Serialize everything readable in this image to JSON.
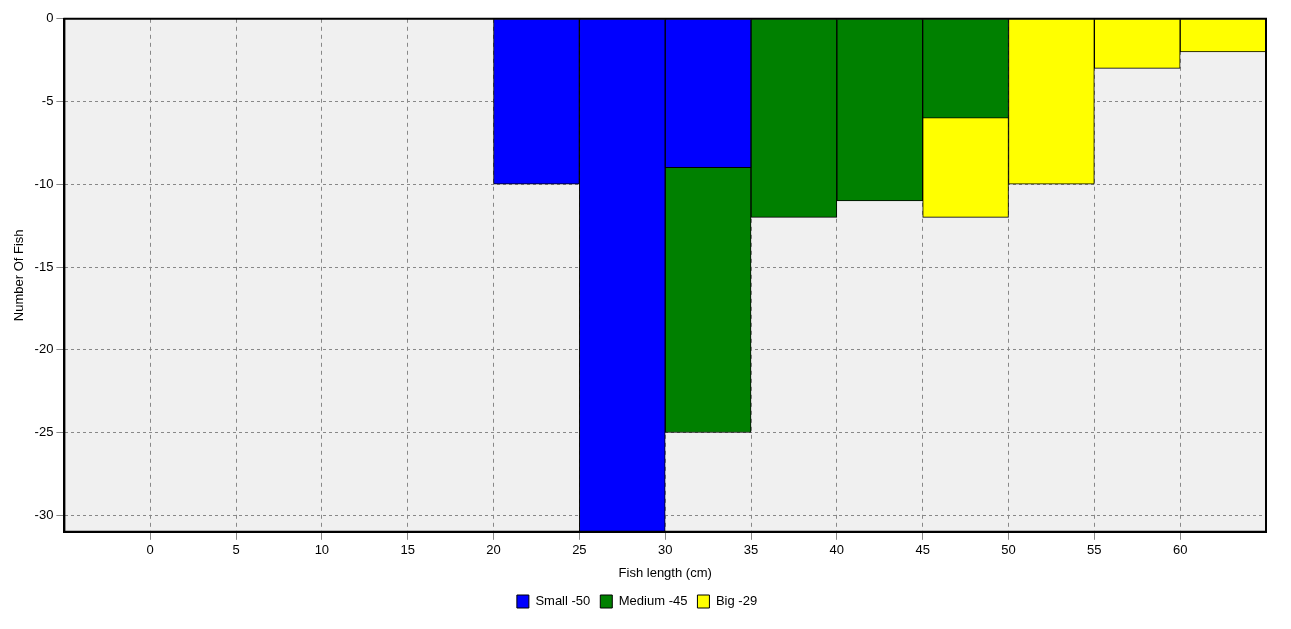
{
  "chart_data": {
    "type": "bar",
    "xlabel": "Fish length (cm)",
    "ylabel": "Number Of Fish",
    "x": [
      22.5,
      27.5,
      32.5,
      37.5,
      42.5,
      47.5,
      52.5,
      57.5,
      62.5
    ],
    "series": [
      {
        "name": "Small -50",
        "color": "#0000ff",
        "values": [
          -10,
          -31,
          -9,
          null,
          null,
          null,
          null,
          null,
          null
        ]
      },
      {
        "name": "Medium -45",
        "color": "#008000",
        "values": [
          null,
          null,
          -16,
          -12,
          -11,
          -6,
          null,
          null,
          null
        ]
      },
      {
        "name": "Big -29",
        "color": "#ffff00",
        "values": [
          null,
          null,
          null,
          null,
          null,
          -6,
          -10,
          -3,
          -2
        ]
      }
    ],
    "stacked": true,
    "xlim": [
      -5,
      65
    ],
    "xticks": [
      0,
      5,
      10,
      15,
      20,
      25,
      30,
      35,
      40,
      45,
      50,
      55,
      60
    ],
    "ylim": [
      -31,
      0
    ],
    "yticks": [
      -30,
      -25,
      -20,
      -15,
      -10,
      -5,
      0
    ],
    "grid": true,
    "legend": "bottom"
  }
}
